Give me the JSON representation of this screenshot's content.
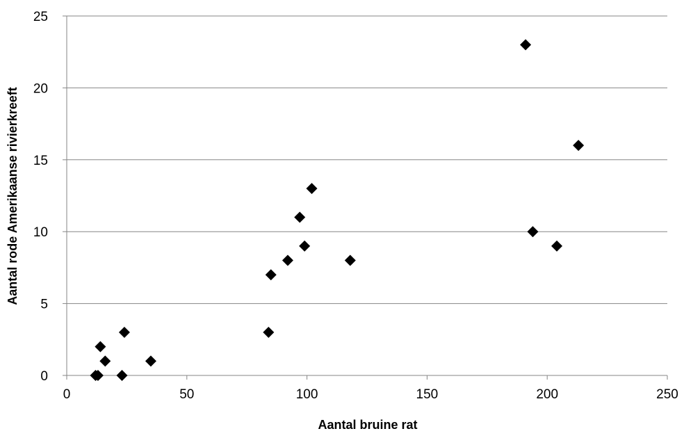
{
  "chart_data": {
    "type": "scatter",
    "title": "",
    "xlabel": "Aantal bruine rat",
    "ylabel": "Aantal rode Amerikaanse rivierkreeft",
    "xlim": [
      0,
      250
    ],
    "ylim": [
      0,
      25
    ],
    "x_ticks": [
      "0",
      "50",
      "100",
      "150",
      "200",
      "250"
    ],
    "y_ticks": [
      "0",
      "5",
      "10",
      "15",
      "20",
      "25"
    ],
    "grid": {
      "horizontal": true,
      "vertical": false
    },
    "legend": "none",
    "marker": "diamond",
    "marker_color": "#000000",
    "grid_color": "#868686",
    "series": [
      {
        "points": [
          {
            "x": 12,
            "y": 0
          },
          {
            "x": 13,
            "y": 0
          },
          {
            "x": 23,
            "y": 0
          },
          {
            "x": 14,
            "y": 2
          },
          {
            "x": 16,
            "y": 1
          },
          {
            "x": 24,
            "y": 3
          },
          {
            "x": 35,
            "y": 1
          },
          {
            "x": 84,
            "y": 3
          },
          {
            "x": 85,
            "y": 7
          },
          {
            "x": 92,
            "y": 8
          },
          {
            "x": 97,
            "y": 11
          },
          {
            "x": 99,
            "y": 9
          },
          {
            "x": 102,
            "y": 13
          },
          {
            "x": 118,
            "y": 8
          },
          {
            "x": 191,
            "y": 23
          },
          {
            "x": 194,
            "y": 10
          },
          {
            "x": 204,
            "y": 9
          },
          {
            "x": 213,
            "y": 16
          }
        ]
      }
    ]
  }
}
